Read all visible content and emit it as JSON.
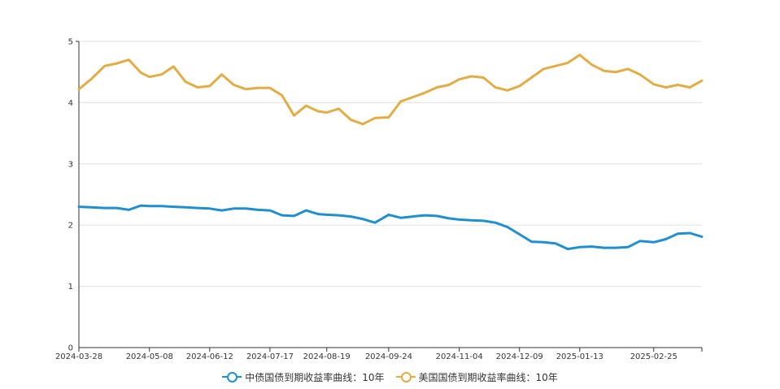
{
  "chart_data": {
    "type": "line",
    "x": [
      "2024-03-28",
      "2024-04-04",
      "2024-04-12",
      "2024-04-19",
      "2024-04-26",
      "2024-05-03",
      "2024-05-08",
      "2024-05-15",
      "2024-05-22",
      "2024-05-29",
      "2024-06-05",
      "2024-06-12",
      "2024-06-19",
      "2024-06-26",
      "2024-07-03",
      "2024-07-10",
      "2024-07-17",
      "2024-07-24",
      "2024-07-31",
      "2024-08-07",
      "2024-08-14",
      "2024-08-19",
      "2024-08-26",
      "2024-09-02",
      "2024-09-09",
      "2024-09-16",
      "2024-09-24",
      "2024-10-01",
      "2024-10-08",
      "2024-10-15",
      "2024-10-22",
      "2024-10-29",
      "2024-11-04",
      "2024-11-11",
      "2024-11-18",
      "2024-11-25",
      "2024-12-02",
      "2024-12-09",
      "2024-12-16",
      "2024-12-23",
      "2024-12-30",
      "2025-01-06",
      "2025-01-13",
      "2025-01-20",
      "2025-01-27",
      "2025-02-03",
      "2025-02-10",
      "2025-02-17",
      "2025-02-25",
      "2025-03-04",
      "2025-03-11",
      "2025-03-18",
      "2025-03-25"
    ],
    "x_ticks": [
      "2024-03-28",
      "2024-05-08",
      "2024-06-12",
      "2024-07-17",
      "2024-08-19",
      "2024-09-24",
      "2024-11-04",
      "2024-12-09",
      "2025-01-13",
      "2025-02-25"
    ],
    "ylim": [
      0,
      5
    ],
    "y_ticks": [
      "0",
      "1",
      "2",
      "3",
      "4",
      "5"
    ],
    "grid": true,
    "legend_position": "bottom-center",
    "series": [
      {
        "name": "中债国债到期收益率曲线：10年",
        "color": "#1f8fd0",
        "values": [
          2.3,
          2.29,
          2.28,
          2.28,
          2.25,
          2.32,
          2.31,
          2.31,
          2.3,
          2.29,
          2.28,
          2.27,
          2.24,
          2.27,
          2.27,
          2.25,
          2.24,
          2.16,
          2.15,
          2.24,
          2.18,
          2.17,
          2.16,
          2.14,
          2.1,
          2.04,
          2.17,
          2.12,
          2.14,
          2.16,
          2.15,
          2.11,
          2.09,
          2.08,
          2.07,
          2.04,
          1.97,
          1.85,
          1.73,
          1.72,
          1.7,
          1.61,
          1.64,
          1.65,
          1.63,
          1.63,
          1.64,
          1.74,
          1.72,
          1.77,
          1.86,
          1.87,
          1.81
        ]
      },
      {
        "name": "美国国债到期收益率曲线：10年",
        "color": "#e3ad45",
        "values": [
          4.22,
          4.38,
          4.6,
          4.64,
          4.7,
          4.49,
          4.42,
          4.46,
          4.59,
          4.34,
          4.25,
          4.27,
          4.46,
          4.29,
          4.22,
          4.24,
          4.24,
          4.12,
          3.79,
          3.95,
          3.86,
          3.84,
          3.9,
          3.72,
          3.65,
          3.75,
          3.76,
          4.02,
          4.09,
          4.16,
          4.25,
          4.29,
          4.38,
          4.43,
          4.41,
          4.25,
          4.2,
          4.27,
          4.41,
          4.55,
          4.6,
          4.65,
          4.78,
          4.62,
          4.52,
          4.5,
          4.55,
          4.46,
          4.3,
          4.25,
          4.29,
          4.25,
          4.36
        ]
      }
    ]
  }
}
